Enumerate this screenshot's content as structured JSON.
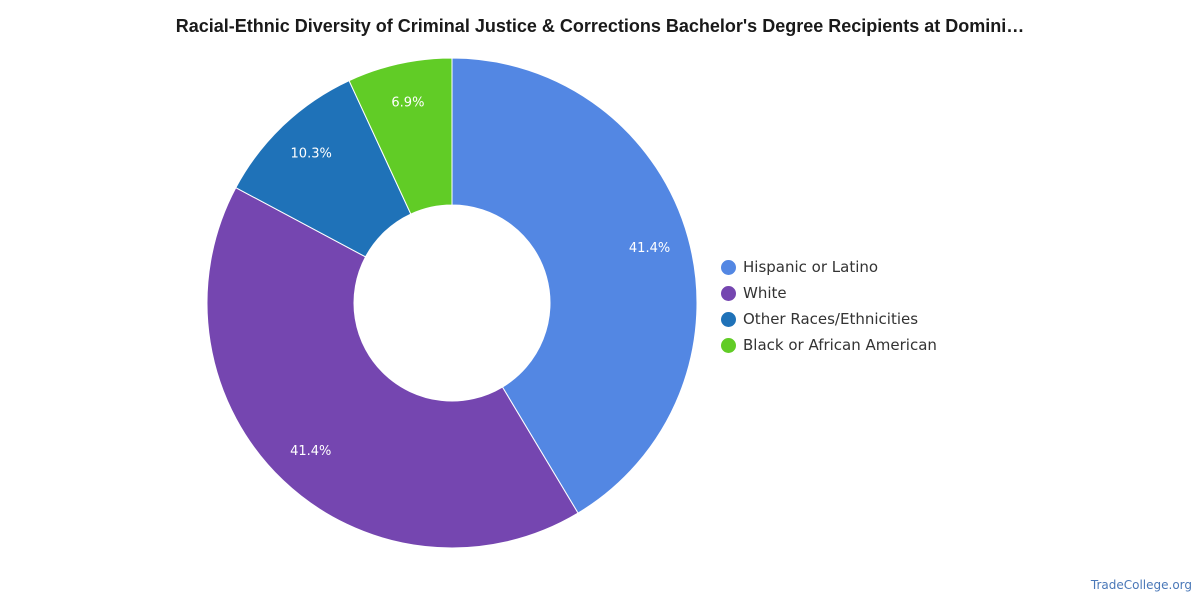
{
  "chart_data": {
    "type": "pie",
    "variant": "donut",
    "title": "Racial-Ethnic Diversity of Criminal Justice & Corrections Bachelor's Degree Recipients at Domini…",
    "legend_position": "right",
    "slices": [
      {
        "name": "Hispanic or Latino",
        "value": 41.4,
        "label": "41.4%",
        "color": "#5387e3"
      },
      {
        "name": "White",
        "value": 41.4,
        "label": "41.4%",
        "color": "#7546b0"
      },
      {
        "name": "Other Races/Ethnicities",
        "value": 10.3,
        "label": "10.3%",
        "color": "#1f72b8"
      },
      {
        "name": "Black or African American",
        "value": 6.9,
        "label": "6.9%",
        "color": "#61cc26"
      }
    ]
  },
  "watermark": "TradeCollege.org"
}
